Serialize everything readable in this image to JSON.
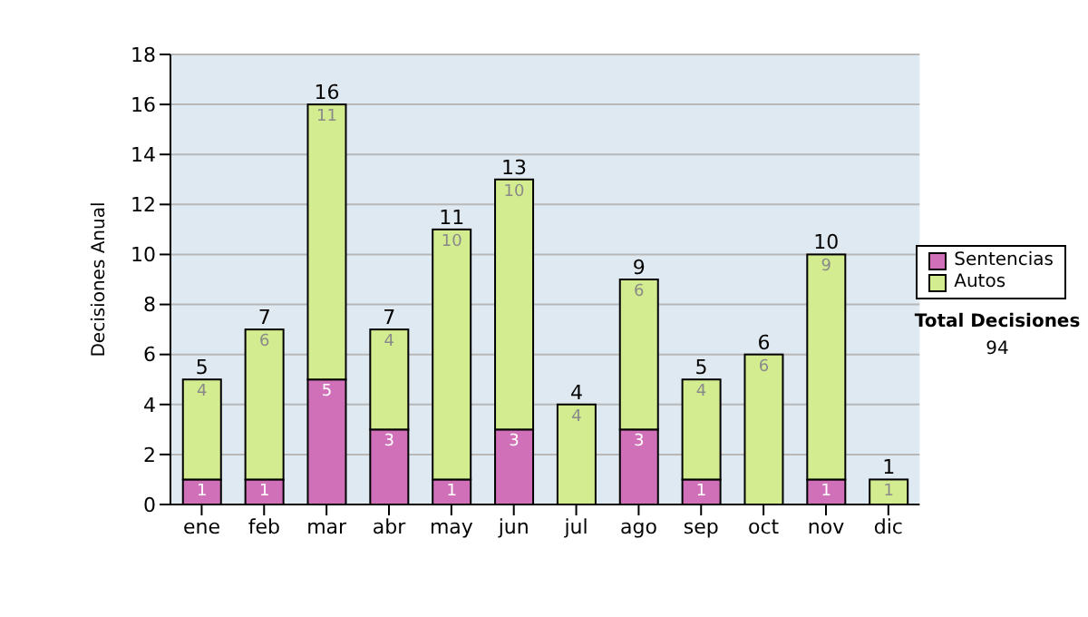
{
  "chart_data": {
    "type": "bar",
    "stacked": true,
    "ylabel": "Decisiones Anual",
    "categories": [
      "ene",
      "feb",
      "mar",
      "abr",
      "may",
      "jun",
      "jul",
      "ago",
      "sep",
      "oct",
      "nov",
      "dic"
    ],
    "series": [
      {
        "name": "Sentencias",
        "color": "#d070b8",
        "values": [
          1,
          1,
          5,
          3,
          1,
          3,
          0,
          3,
          1,
          0,
          1,
          0
        ],
        "value_labels": [
          "1",
          "1",
          "5",
          "3",
          "1",
          "3",
          null,
          "3",
          "1",
          null,
          "1",
          null
        ]
      },
      {
        "name": "Autos",
        "color": "#d4ec90",
        "values": [
          4,
          6,
          11,
          4,
          10,
          10,
          4,
          6,
          4,
          6,
          9,
          1
        ],
        "value_labels": [
          "4",
          "6",
          "11",
          "4",
          "10",
          "10",
          "4",
          "6",
          "4",
          "6",
          "9",
          "1"
        ]
      }
    ],
    "totals": [
      "5",
      "7",
      "16",
      "7",
      "11",
      "13",
      "4",
      "9",
      "5",
      "6",
      "10",
      "1"
    ],
    "ylim": [
      0,
      18
    ],
    "yticks": [
      0,
      2,
      4,
      6,
      8,
      10,
      12,
      14,
      16,
      18
    ],
    "grid": "y",
    "legend": "right",
    "annotations": [
      "Total Decisiones",
      "94"
    ]
  }
}
